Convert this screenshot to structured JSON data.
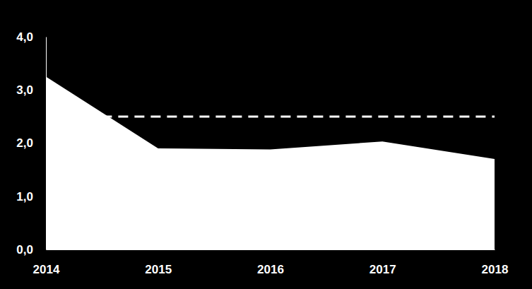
{
  "chart_data": {
    "type": "area",
    "x": [
      2014,
      2015,
      2016,
      2017,
      2018
    ],
    "xlim": [
      2014,
      2018
    ],
    "xticks": [
      2014,
      2015,
      2016,
      2017,
      2018
    ],
    "ylim": [
      0,
      4
    ],
    "yticks": [
      {
        "value": 0,
        "label": "0,0"
      },
      {
        "value": 1,
        "label": "1,0"
      },
      {
        "value": 2,
        "label": "2,0"
      },
      {
        "value": 3,
        "label": "3,0"
      },
      {
        "value": 4,
        "label": "4,0"
      }
    ],
    "grid": false,
    "series": [
      {
        "color": "#ffffff",
        "values": [
          3.25,
          1.9,
          1.88,
          2.03,
          1.7
        ]
      },
      {
        "type": "line",
        "line_style": "dashed",
        "color": "#ffffff",
        "x": [
          2014.5,
          2018
        ],
        "values": [
          2.5,
          2.5
        ]
      }
    ]
  }
}
